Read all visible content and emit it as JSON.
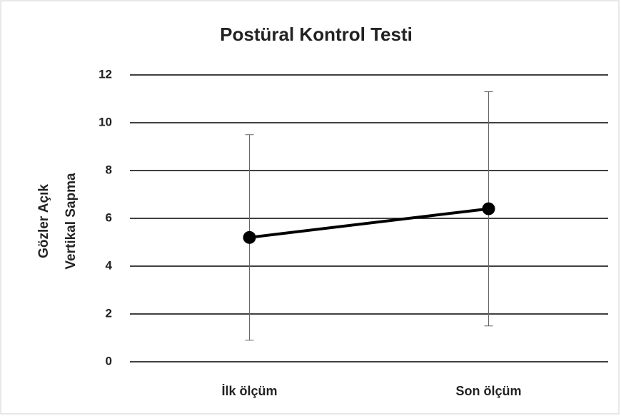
{
  "chart_data": {
    "type": "line",
    "title": "Postüral Kontrol Testi",
    "ylabel": [
      "Gözler Açık",
      "Vertikal Sapma"
    ],
    "categories": [
      "İlk ölçüm",
      "Son ölçüm"
    ],
    "series": [
      {
        "color": "#000000",
        "values": [
          5.2,
          6.4
        ],
        "errors": [
          4.3,
          4.9
        ]
      }
    ],
    "ylim": [
      0,
      12
    ],
    "yticks": [
      0,
      2,
      4,
      6,
      8,
      10,
      12
    ],
    "grid": true
  }
}
